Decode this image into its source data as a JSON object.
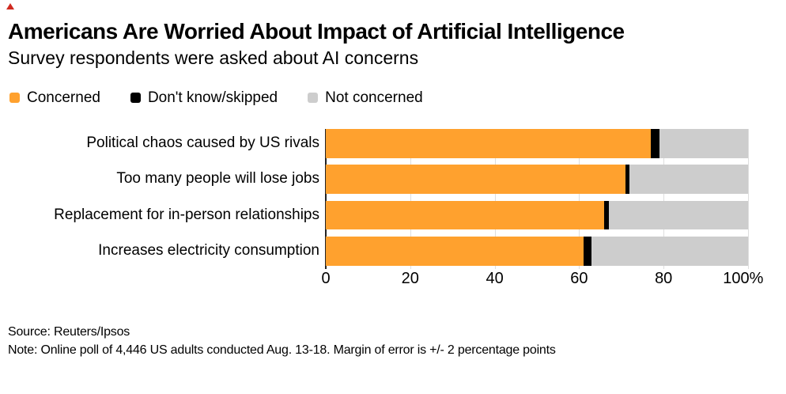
{
  "header": {
    "title": "Americans Are Worried About Impact of Artificial Intelligence",
    "subtitle": "Survey respondents were asked about AI concerns"
  },
  "legend": [
    {
      "label": "Concerned",
      "color": "#ffa12e"
    },
    {
      "label": "Don't know/skipped",
      "color": "#000000"
    },
    {
      "label": "Not concerned",
      "color": "#cdcdcd"
    }
  ],
  "chart_data": {
    "type": "bar",
    "orientation": "horizontal",
    "stacked": true,
    "title": "Americans Are Worried About Impact of Artificial Intelligence",
    "subtitle": "Survey respondents were asked about AI concerns",
    "categories": [
      "Political chaos caused by US rivals",
      "Too many people will lose jobs",
      "Replacement for in-person relationships",
      "Increases electricity consumption"
    ],
    "series": [
      {
        "name": "Concerned",
        "color": "#ffa12e",
        "values": [
          77,
          71,
          66,
          61
        ]
      },
      {
        "name": "Don't know/skipped",
        "color": "#000000",
        "values": [
          2,
          1,
          1,
          2
        ]
      },
      {
        "name": "Not concerned",
        "color": "#cdcdcd",
        "values": [
          21,
          28,
          33,
          37
        ]
      }
    ],
    "xlim": [
      0,
      100
    ],
    "x_ticks": [
      {
        "value": 0,
        "label": "0"
      },
      {
        "value": 20,
        "label": "20"
      },
      {
        "value": 40,
        "label": "40"
      },
      {
        "value": 60,
        "label": "60"
      },
      {
        "value": 80,
        "label": "80"
      },
      {
        "value": 100,
        "label": "100%"
      }
    ],
    "grid": true,
    "legend_position": "top"
  },
  "footer": {
    "source": "Source: Reuters/Ipsos",
    "note": "Note: Online poll of 4,446 US adults conducted Aug. 13-18. Margin of error is +/- 2 percentage points"
  },
  "colors": {
    "accent_red": "#d02a20",
    "axis_line": "#222222",
    "gridline": "#dedede",
    "background": "#ffffff"
  }
}
